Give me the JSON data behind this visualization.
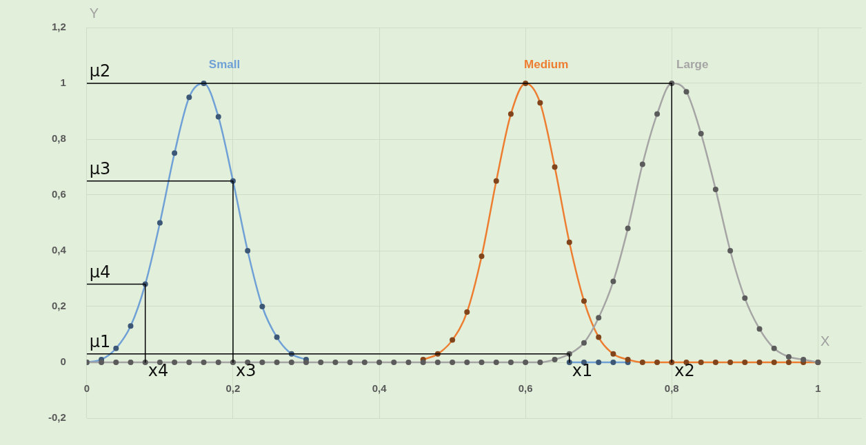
{
  "chart_data": {
    "type": "line",
    "xlabel": "X",
    "ylabel": "Y",
    "x": [
      0,
      0.02,
      0.04,
      0.06,
      0.08,
      0.1,
      0.12,
      0.14,
      0.16,
      0.18,
      0.2,
      0.22,
      0.24,
      0.26,
      0.28,
      0.3,
      0.32,
      0.34,
      0.36,
      0.38,
      0.4,
      0.42,
      0.44,
      0.46,
      0.48,
      0.5,
      0.52,
      0.54,
      0.56,
      0.58,
      0.6,
      0.62,
      0.64,
      0.66,
      0.68,
      0.7,
      0.72,
      0.74,
      0.76,
      0.78,
      0.8,
      0.82,
      0.84,
      0.86,
      0.88,
      0.9,
      0.92,
      0.94,
      0.96,
      0.98,
      1
    ],
    "xlim": [
      0,
      1.06
    ],
    "xticks": [
      0,
      {
        "value": 0.2,
        "label": "0,2"
      },
      {
        "value": 0.4,
        "label": "0,4"
      },
      {
        "value": 0.6,
        "label": "0,6"
      },
      {
        "value": 0.8,
        "label": "0,8"
      },
      1
    ],
    "ylim": [
      -0.2,
      1.2
    ],
    "yticks": [
      {
        "value": -0.2,
        "label": "-0,2"
      },
      0,
      {
        "value": 0.2,
        "label": "0,2"
      },
      {
        "value": 0.4,
        "label": "0,4"
      },
      {
        "value": 0.6,
        "label": "0,6"
      },
      {
        "value": 0.8,
        "label": "0,8"
      },
      1,
      {
        "value": 1.2,
        "label": "1,2"
      }
    ],
    "grid": true,
    "legend": false,
    "marker": "circle",
    "series": [
      {
        "name": "Small",
        "color": "#6fa0d6",
        "values": [
          0,
          0.01,
          0.05,
          0.13,
          0.28,
          0.5,
          0.75,
          0.95,
          1,
          0.88,
          0.65,
          0.4,
          0.2,
          0.09,
          0.03,
          0.01,
          null,
          null,
          null,
          null,
          null,
          null,
          null,
          null,
          null,
          null,
          null,
          null,
          null,
          null,
          null,
          null,
          null,
          0,
          0,
          0,
          0,
          0,
          null,
          null,
          null,
          null,
          null,
          null,
          null,
          null,
          null,
          null,
          null,
          null,
          null
        ]
      },
      {
        "name": "Medium",
        "color": "#ed7d31",
        "values": [
          null,
          null,
          null,
          null,
          null,
          null,
          null,
          null,
          null,
          null,
          null,
          null,
          null,
          null,
          null,
          null,
          null,
          null,
          null,
          null,
          null,
          null,
          null,
          0.01,
          0.03,
          0.08,
          0.18,
          0.38,
          0.65,
          0.89,
          1,
          0.93,
          0.7,
          0.43,
          0.22,
          0.09,
          0.03,
          0.01,
          0,
          0,
          0,
          0,
          0,
          0,
          0,
          0,
          0,
          0,
          0,
          0,
          0
        ]
      },
      {
        "name": "Large",
        "color": "#a5a5a5",
        "values": [
          0,
          0,
          0,
          0,
          0,
          0,
          0,
          0,
          0,
          0,
          0,
          0,
          0,
          0,
          0,
          0,
          0,
          0,
          0,
          0,
          0,
          0,
          0,
          0,
          0,
          0,
          0,
          0,
          0,
          0,
          0,
          0,
          0.01,
          0.03,
          0.07,
          0.16,
          0.29,
          0.48,
          0.71,
          0.89,
          1,
          0.97,
          0.82,
          0.62,
          0.4,
          0.23,
          0.12,
          0.05,
          0.02,
          0.01,
          0
        ]
      },
      {
        "type": "line",
        "color": "#000000",
        "marker": "none",
        "x": [
          0,
          0.8,
          0.8
        ],
        "values": [
          1,
          1,
          0
        ]
      },
      {
        "type": "line",
        "color": "#000000",
        "marker": "none",
        "x": [
          0,
          0.2,
          0.2
        ],
        "values": [
          0.65,
          0.65,
          0
        ]
      },
      {
        "type": "line",
        "color": "#000000",
        "marker": "none",
        "x": [
          0,
          0.08,
          0.08
        ],
        "values": [
          0.28,
          0.28,
          0
        ]
      },
      {
        "type": "line",
        "color": "#000000",
        "marker": "none",
        "x": [
          0,
          0.66,
          0.66
        ],
        "values": [
          0.03,
          0.03,
          0
        ]
      }
    ],
    "annotations": [
      {
        "text": "μ2",
        "x": 0,
        "y": 1
      },
      {
        "text": "μ3",
        "x": 0,
        "y": 0.65
      },
      {
        "text": "μ4",
        "x": 0,
        "y": 0.28
      },
      {
        "text": "μ1",
        "x": 0,
        "y": 0.03
      },
      {
        "text": "x4",
        "x": 0.08,
        "y": 0
      },
      {
        "text": "x3",
        "x": 0.2,
        "y": 0
      },
      {
        "text": "x1",
        "x": 0.66,
        "y": 0
      },
      {
        "text": "x2",
        "x": 0.8,
        "y": 0
      }
    ]
  }
}
